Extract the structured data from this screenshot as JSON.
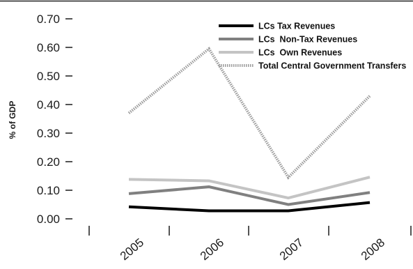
{
  "chart_data": {
    "type": "line",
    "ylabel": "% of GDP",
    "categories": [
      "2005",
      "2006",
      "2007",
      "2008"
    ],
    "ylim": [
      0,
      0.7
    ],
    "yticks": [
      "0.00",
      "0.10",
      "0.20",
      "0.30",
      "0.40",
      "0.50",
      "0.60",
      "0.70"
    ],
    "legend_position": "top-right",
    "series": [
      {
        "name": "LCs Tax Revenues",
        "values": [
          0.042,
          0.028,
          0.028,
          0.057
        ],
        "color": "#000000",
        "style": "solid"
      },
      {
        "name": "LCs  Non-Tax Revenues",
        "values": [
          0.088,
          0.112,
          0.05,
          0.092
        ],
        "color": "#808080",
        "style": "solid"
      },
      {
        "name": "LCs  Own Revenues",
        "values": [
          0.138,
          0.133,
          0.073,
          0.146
        ],
        "color": "#c4c4c4",
        "style": "solid"
      },
      {
        "name": "Total Central Government Transfers",
        "values": [
          0.37,
          0.595,
          0.145,
          0.43
        ],
        "color": "#9c9c9c",
        "style": "dotted"
      }
    ]
  }
}
